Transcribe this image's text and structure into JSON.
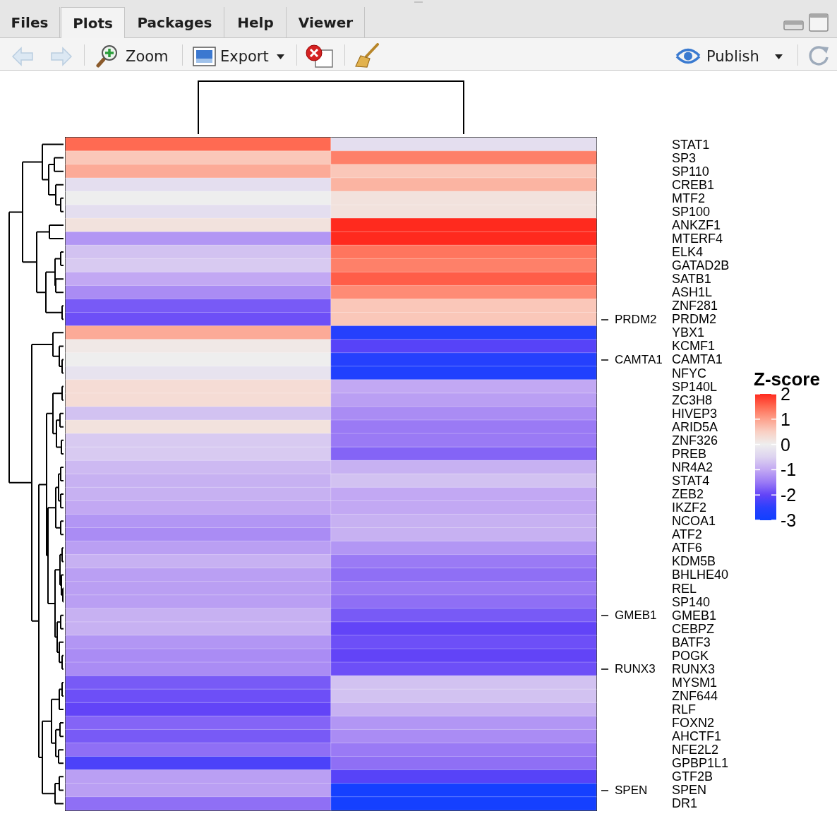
{
  "chart_data": {
    "type": "heatmap",
    "clabel": "Z-score",
    "categories": [
      null,
      null
    ],
    "y_categories": [
      "STAT1",
      "SP3",
      "SP110",
      "CREB1",
      "MTF2",
      "SP100",
      "ANKZF1",
      "MTERF4",
      "ELK4",
      "GATAD2B",
      "SATB1",
      "ASH1L",
      "ZNF281",
      "PRDM2",
      "YBX1",
      "KCMF1",
      "CAMTA1",
      "NFYC",
      "SP140L",
      "ZC3H8",
      "HIVEP3",
      "ARID5A",
      "ZNF326",
      "PREB",
      "NR4A2",
      "STAT4",
      "ZEB2",
      "IKZF2",
      "NCOA1",
      "ATF2",
      "ATF6",
      "KDM5B",
      "BHLHE40",
      "REL",
      "SP140",
      "GMEB1",
      "CEBPZ",
      "BATF3",
      "POGK",
      "RUNX3",
      "MYSM1",
      "ZNF644",
      "RLF",
      "FOXN2",
      "AHCTF1",
      "NFE2L2",
      "GPBP1L1",
      "GTF2B",
      "SPEN",
      "DR1"
    ],
    "y2_categories": [
      null,
      null,
      null,
      null,
      null,
      null,
      null,
      null,
      null,
      null,
      null,
      null,
      null,
      "PRDM2",
      null,
      null,
      "CAMTA1",
      null,
      null,
      null,
      null,
      null,
      null,
      null,
      null,
      null,
      null,
      null,
      null,
      null,
      null,
      null,
      null,
      null,
      null,
      "GMEB1",
      null,
      null,
      null,
      "RUNX3",
      null,
      null,
      null,
      null,
      null,
      null,
      null,
      null,
      "SPEN",
      null
    ],
    "cells": [
      [
        1.5,
        -0.3
      ],
      [
        0.6,
        1.3
      ],
      [
        0.9,
        0.6
      ],
      [
        -0.3,
        0.8
      ],
      [
        0.0,
        0.2
      ],
      [
        -0.3,
        0.2
      ],
      [
        0.2,
        2.0
      ],
      [
        -1.2,
        2.0
      ],
      [
        -0.7,
        1.4
      ],
      [
        -0.6,
        1.3
      ],
      [
        -1.0,
        1.6
      ],
      [
        -1.3,
        1.2
      ],
      [
        -1.8,
        0.6
      ],
      [
        -1.9,
        0.6
      ],
      [
        0.9,
        -2.6
      ],
      [
        0.1,
        -2.1
      ],
      [
        0.0,
        -2.6
      ],
      [
        -0.2,
        -2.7
      ],
      [
        0.3,
        -1.0
      ],
      [
        0.3,
        -1.1
      ],
      [
        -0.7,
        -1.3
      ],
      [
        0.2,
        -1.5
      ],
      [
        -0.6,
        -1.5
      ],
      [
        -0.6,
        -1.7
      ],
      [
        -0.8,
        -0.9
      ],
      [
        -0.9,
        -0.7
      ],
      [
        -0.9,
        -1.0
      ],
      [
        -1.0,
        -1.0
      ],
      [
        -1.2,
        -0.9
      ],
      [
        -1.3,
        -0.9
      ],
      [
        -1.1,
        -1.2
      ],
      [
        -0.9,
        -1.5
      ],
      [
        -1.1,
        -1.6
      ],
      [
        -1.1,
        -1.5
      ],
      [
        -1.1,
        -1.6
      ],
      [
        -0.9,
        -1.8
      ],
      [
        -0.9,
        -2.0
      ],
      [
        -1.2,
        -1.9
      ],
      [
        -1.3,
        -2.0
      ],
      [
        -1.3,
        -1.9
      ],
      [
        -1.8,
        -0.7
      ],
      [
        -1.9,
        -0.7
      ],
      [
        -2.0,
        -0.9
      ],
      [
        -1.7,
        -1.2
      ],
      [
        -1.8,
        -1.3
      ],
      [
        -1.6,
        -1.5
      ],
      [
        -2.2,
        -1.6
      ],
      [
        -1.1,
        -2.1
      ],
      [
        -1.1,
        -2.9
      ],
      [
        -1.6,
        -2.9
      ]
    ],
    "clim": [
      -3,
      2
    ],
    "cticks": [
      -3,
      -2,
      -1,
      0,
      1,
      2
    ],
    "colors": [
      "#1040ff",
      "#2a40fd",
      "#6244f7",
      "#9a7af5",
      "#c2a8f3",
      "#ddd3f0",
      "#eeeeee",
      "#f9d0c4",
      "#fda18c",
      "#ff6a52",
      "#ff2a1e"
    ],
    "annotations": [
      "Files",
      "Plots",
      "Packages",
      "Help",
      "Viewer",
      "Zoom",
      "Export",
      "Publish"
    ]
  }
}
